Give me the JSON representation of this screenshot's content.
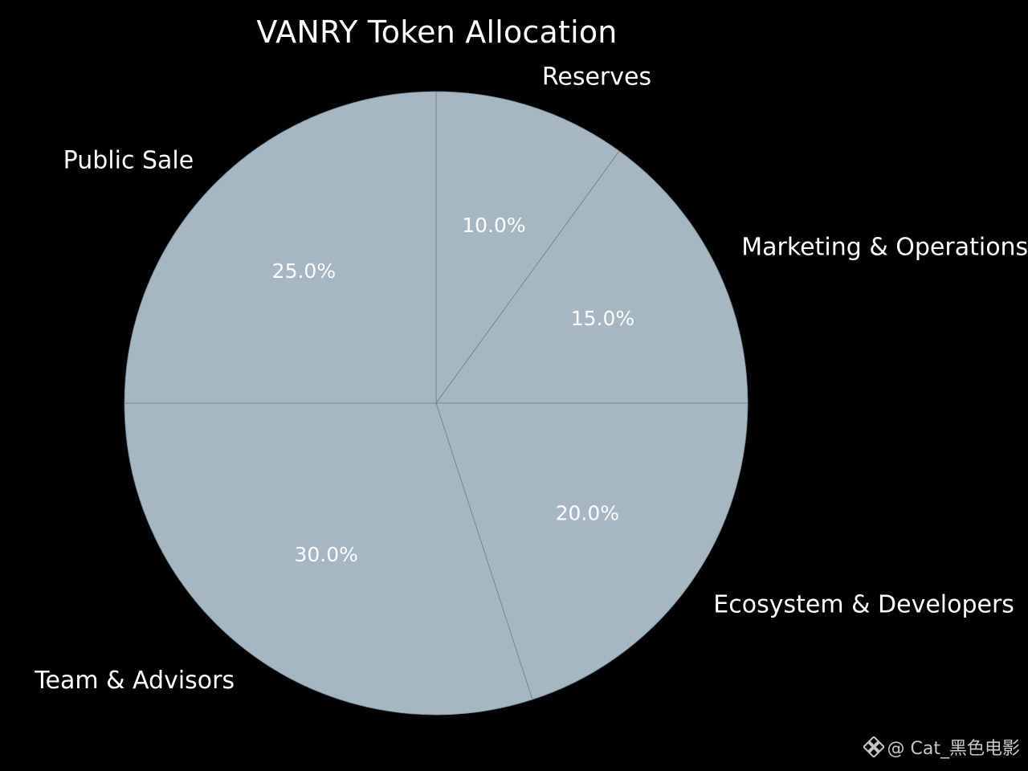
{
  "chart_data": {
    "type": "pie",
    "title": "VANRY Token Allocation",
    "slices": [
      {
        "label": "Reserves",
        "value": 10.0,
        "pct_label": "10.0%"
      },
      {
        "label": "Marketing & Operations",
        "value": 15.0,
        "pct_label": "15.0%"
      },
      {
        "label": "Ecosystem & Developers",
        "value": 20.0,
        "pct_label": "20.0%"
      },
      {
        "label": "Team & Advisors",
        "value": 30.0,
        "pct_label": "30.0%"
      },
      {
        "label": "Public Sale",
        "value": 25.0,
        "pct_label": "25.0%"
      }
    ],
    "slice_color": "#a5b7c3",
    "edge_color": "#6f808c",
    "start": "top",
    "direction": "clockwise"
  },
  "watermark": {
    "icon": "binance-diamond-icon",
    "text": "@ Cat_黑色电影"
  },
  "colors": {
    "background": "#000000",
    "text": "#ffffff"
  }
}
